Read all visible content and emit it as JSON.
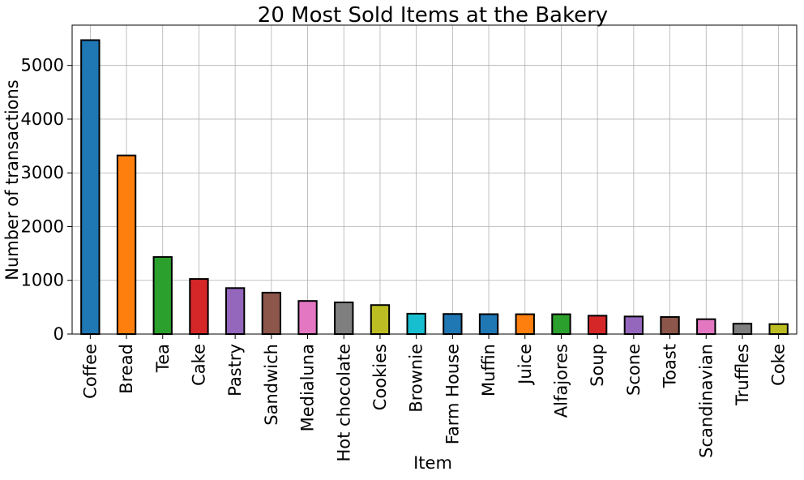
{
  "chart_data": {
    "type": "bar",
    "title": "20 Most Sold Items at the Bakery",
    "xlabel": "Item",
    "ylabel": "Number of transactions",
    "categories": [
      "Coffee",
      "Bread",
      "Tea",
      "Cake",
      "Pastry",
      "Sandwich",
      "Medialuna",
      "Hot chocolate",
      "Cookies",
      "Brownie",
      "Farm House",
      "Muffin",
      "Juice",
      "Alfajores",
      "Soup",
      "Scone",
      "Toast",
      "Scandinavian",
      "Truffles",
      "Coke"
    ],
    "values": [
      5471,
      3325,
      1435,
      1025,
      856,
      771,
      616,
      590,
      540,
      379,
      374,
      370,
      369,
      369,
      342,
      327,
      318,
      277,
      193,
      185
    ],
    "colors": [
      "#1f77b4",
      "#ff7f0e",
      "#2ca02c",
      "#d62728",
      "#9467bd",
      "#8c564b",
      "#e377c2",
      "#7f7f7f",
      "#bcbd22",
      "#17becf",
      "#1f77b4",
      "#1f77b4",
      "#ff7f0e",
      "#2ca02c",
      "#d62728",
      "#9467bd",
      "#8c564b",
      "#e377c2",
      "#7f7f7f",
      "#bcbd22"
    ],
    "ylim": [
      0,
      5750
    ],
    "yticks": [
      0,
      1000,
      2000,
      3000,
      4000,
      5000
    ],
    "grid": true
  }
}
